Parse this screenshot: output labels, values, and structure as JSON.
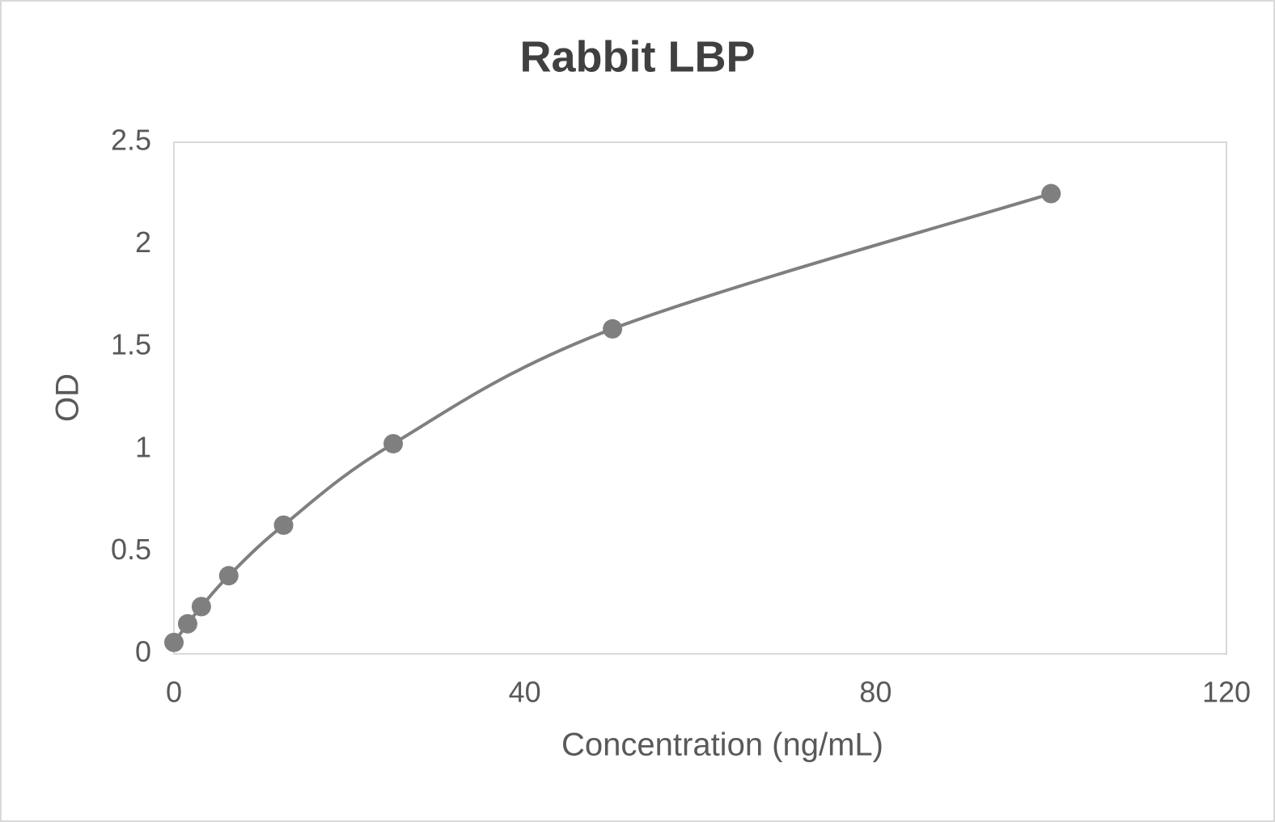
{
  "chart_data": {
    "type": "scatter",
    "title": "Rabbit LBP",
    "x_label": "Concentration (ng/mL)",
    "y_label": "OD",
    "x": [
      0,
      1.5625,
      3.125,
      6.25,
      12.5,
      25,
      50,
      100
    ],
    "values": [
      0.056,
      0.147,
      0.231,
      0.382,
      0.629,
      1.027,
      1.588,
      2.249
    ],
    "color": "#7f7f7f",
    "smooth": true,
    "xlim": [
      0,
      120
    ],
    "xticks": [
      0,
      40,
      80,
      120
    ],
    "ylim": [
      0,
      2.5
    ],
    "yticks": [
      0,
      0.5,
      1,
      1.5,
      2,
      2.5
    ]
  }
}
